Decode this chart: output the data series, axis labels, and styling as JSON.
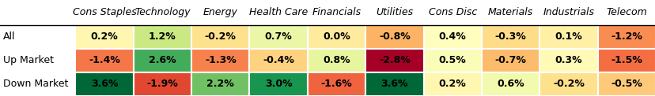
{
  "columns": [
    "Cons Staples",
    "Technology",
    "Energy",
    "Health Care",
    "Financials",
    "Utilities",
    "Cons Disc",
    "Materials",
    "Industrials",
    "Telecom"
  ],
  "rows": [
    "All",
    "Up Market",
    "Down Market"
  ],
  "values": [
    [
      0.2,
      1.2,
      -0.2,
      0.7,
      0.0,
      -0.8,
      0.4,
      -0.3,
      0.1,
      -1.2
    ],
    [
      -1.4,
      2.6,
      -1.3,
      -0.4,
      0.8,
      -2.8,
      0.5,
      -0.7,
      0.3,
      -1.5
    ],
    [
      3.6,
      -1.9,
      2.2,
      3.0,
      -1.6,
      3.6,
      0.2,
      0.6,
      -0.2,
      -0.5
    ]
  ],
  "text_color": "#000000",
  "header_font_style": "italic",
  "cell_font_weight": "bold",
  "cell_fontsize": 9,
  "header_fontsize": 9,
  "row_label_fontsize": 9,
  "vmin": -2.8,
  "vmax": 3.6,
  "background_color": "#ffffff",
  "row_label_color": "#000000",
  "grid_color": "#ffffff",
  "figsize": [
    8.29,
    1.22
  ],
  "dpi": 100
}
